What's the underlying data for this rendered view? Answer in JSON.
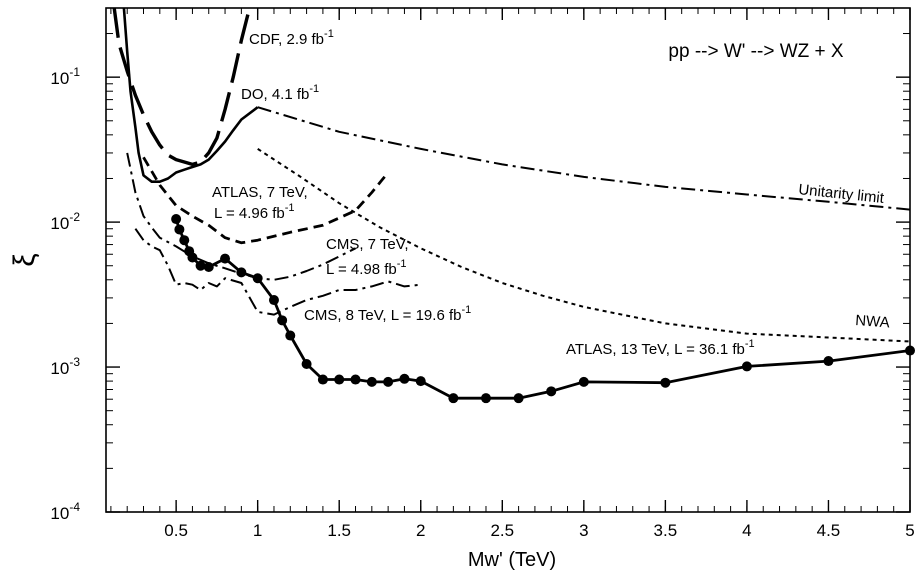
{
  "chart_data": {
    "type": "line",
    "title": "",
    "xlabel": "Mw' (TeV)",
    "ylabel": "ξ",
    "xlim": [
      0.07,
      5.0
    ],
    "ylim": [
      0.0001,
      0.3
    ],
    "y_scale": "log",
    "grid": false,
    "x_ticks": [
      {
        "value": 0.5,
        "label": "0.5"
      },
      {
        "value": 1.0,
        "label": "1"
      },
      {
        "value": 1.5,
        "label": "1.5"
      },
      {
        "value": 2.0,
        "label": "2"
      },
      {
        "value": 2.5,
        "label": "2.5"
      },
      {
        "value": 3.0,
        "label": "3"
      },
      {
        "value": 3.5,
        "label": "3.5"
      },
      {
        "value": 4.0,
        "label": "4"
      },
      {
        "value": 4.5,
        "label": "4.5"
      },
      {
        "value": 5.0,
        "label": "5"
      }
    ],
    "y_ticks": [
      {
        "value": 0.1,
        "label": "10",
        "exp": "-1"
      },
      {
        "value": 0.01,
        "label": "10",
        "exp": "-2"
      },
      {
        "value": 0.001,
        "label": "10",
        "exp": "-3"
      },
      {
        "value": 0.0001,
        "label": "10",
        "exp": "-4"
      }
    ],
    "process_label": "pp --> W' --> WZ + X",
    "series": [
      {
        "name": "CDF, 2.9 fb-1",
        "style": "longdash",
        "x": [
          0.12,
          0.15,
          0.2,
          0.25,
          0.3,
          0.35,
          0.4,
          0.45,
          0.5,
          0.55,
          0.6,
          0.65,
          0.7,
          0.75,
          0.8,
          0.85,
          0.9,
          0.95
        ],
        "y": [
          0.3,
          0.17,
          0.11,
          0.075,
          0.055,
          0.042,
          0.034,
          0.029,
          0.027,
          0.026,
          0.025,
          0.026,
          0.03,
          0.038,
          0.06,
          0.1,
          0.18,
          0.3
        ]
      },
      {
        "name": "DO, 4.1 fb-1",
        "style": "solid",
        "x": [
          0.18,
          0.2,
          0.22,
          0.25,
          0.27,
          0.3,
          0.35,
          0.4,
          0.45,
          0.5,
          0.55,
          0.6,
          0.65,
          0.7,
          0.75,
          0.8,
          0.85,
          0.9,
          1.0
        ],
        "y": [
          0.3,
          0.15,
          0.08,
          0.045,
          0.03,
          0.021,
          0.019,
          0.019,
          0.02,
          0.022,
          0.023,
          0.024,
          0.025,
          0.027,
          0.031,
          0.036,
          0.043,
          0.051,
          0.062
        ]
      },
      {
        "name": "Unitarity limit",
        "style": "dashdot",
        "x": [
          1.0,
          1.5,
          2.0,
          2.5,
          3.0,
          3.5,
          4.0,
          4.5,
          5.0
        ],
        "y": [
          0.062,
          0.042,
          0.032,
          0.025,
          0.0205,
          0.0175,
          0.0155,
          0.0138,
          0.0122
        ]
      },
      {
        "name": "NWA",
        "style": "dotted",
        "x": [
          1.0,
          1.25,
          1.5,
          1.75,
          2.0,
          2.25,
          2.5,
          2.75,
          3.0,
          3.5,
          4.0,
          4.5,
          5.0
        ],
        "y": [
          0.032,
          0.021,
          0.0135,
          0.0092,
          0.0066,
          0.0049,
          0.0038,
          0.0031,
          0.0026,
          0.002,
          0.0017,
          0.0016,
          0.0015
        ]
      },
      {
        "name": "ATLAS, 7 TeV, L = 4.96 fb-1",
        "style": "shortdash",
        "x": [
          0.3,
          0.4,
          0.5,
          0.6,
          0.7,
          0.8,
          0.9,
          1.0,
          1.2,
          1.4,
          1.6,
          1.7,
          1.8
        ],
        "y": [
          0.028,
          0.018,
          0.013,
          0.011,
          0.0095,
          0.0078,
          0.0072,
          0.0075,
          0.0085,
          0.0095,
          0.012,
          0.016,
          0.022
        ]
      },
      {
        "name": "CMS, 7 TeV, L = 4.98 fb-1",
        "style": "dashdot",
        "x": [
          0.2,
          0.25,
          0.3,
          0.35,
          0.4,
          0.5,
          0.6,
          0.7,
          0.8,
          0.9,
          1.0,
          1.1,
          1.2,
          1.3,
          1.4,
          1.5,
          1.6
        ],
        "y": [
          0.03,
          0.016,
          0.011,
          0.0092,
          0.0078,
          0.0068,
          0.0058,
          0.0052,
          0.0048,
          0.0044,
          0.0041,
          0.004,
          0.0042,
          0.0046,
          0.0051,
          0.0058,
          0.0066
        ]
      },
      {
        "name": "CMS, 8 TeV, L = 19.6 fb-1",
        "style": "dashdot",
        "x": [
          0.25,
          0.3,
          0.35,
          0.4,
          0.45,
          0.5,
          0.55,
          0.6,
          0.65,
          0.7,
          0.75,
          0.8,
          0.9,
          1.0,
          1.1,
          1.2,
          1.3,
          1.4,
          1.5,
          1.6,
          1.7,
          1.8,
          1.9,
          2.0
        ],
        "y": [
          0.009,
          0.0075,
          0.0068,
          0.0064,
          0.005,
          0.0037,
          0.0038,
          0.0037,
          0.0034,
          0.0038,
          0.0036,
          0.0041,
          0.0038,
          0.0024,
          0.0023,
          0.0026,
          0.0029,
          0.0031,
          0.0034,
          0.0034,
          0.0036,
          0.0039,
          0.0036,
          0.0037
        ]
      },
      {
        "name": "ATLAS, 13 TeV, L = 36.1 fb-1",
        "style": "solid-markers",
        "x": [
          0.5,
          0.52,
          0.55,
          0.58,
          0.6,
          0.65,
          0.7,
          0.8,
          0.9,
          1.0,
          1.1,
          1.15,
          1.2,
          1.3,
          1.4,
          1.5,
          1.6,
          1.7,
          1.8,
          1.9,
          2.0,
          2.2,
          2.4,
          2.6,
          2.8,
          3.0,
          3.5,
          4.0,
          4.5,
          5.0
        ],
        "y": [
          0.0105,
          0.0089,
          0.0075,
          0.0063,
          0.0057,
          0.005,
          0.0049,
          0.0056,
          0.0045,
          0.0041,
          0.0029,
          0.0021,
          0.00165,
          0.00105,
          0.00082,
          0.00082,
          0.00082,
          0.00079,
          0.00079,
          0.00083,
          0.0008,
          0.00061,
          0.00061,
          0.00061,
          0.00068,
          0.00079,
          0.00078,
          0.00101,
          0.0011,
          0.0013
        ]
      }
    ],
    "annotations": [
      {
        "series": 0,
        "text": "CDF, 2.9 fb",
        "exp": "-1"
      },
      {
        "series": 1,
        "text": "DO,  4.1 fb",
        "exp": "-1"
      },
      {
        "series": 2,
        "text": "Unitarity limit",
        "exp": ""
      },
      {
        "series": 3,
        "text": "NWA",
        "exp": ""
      },
      {
        "series": 4,
        "text": "ATLAS, 7 TeV,",
        "exp": ""
      },
      {
        "series": 4,
        "text": "L = 4.96 fb",
        "exp": "-1"
      },
      {
        "series": 5,
        "text": "CMS, 7 TeV,",
        "exp": ""
      },
      {
        "series": 5,
        "text": "L = 4.98 fb",
        "exp": "-1"
      },
      {
        "series": 6,
        "text": "CMS, 8 TeV, L  = 19.6 fb",
        "exp": "-1"
      },
      {
        "series": 7,
        "text": "ATLAS, 13 TeV,  L = 36.1 fb",
        "exp": "-1"
      }
    ]
  }
}
